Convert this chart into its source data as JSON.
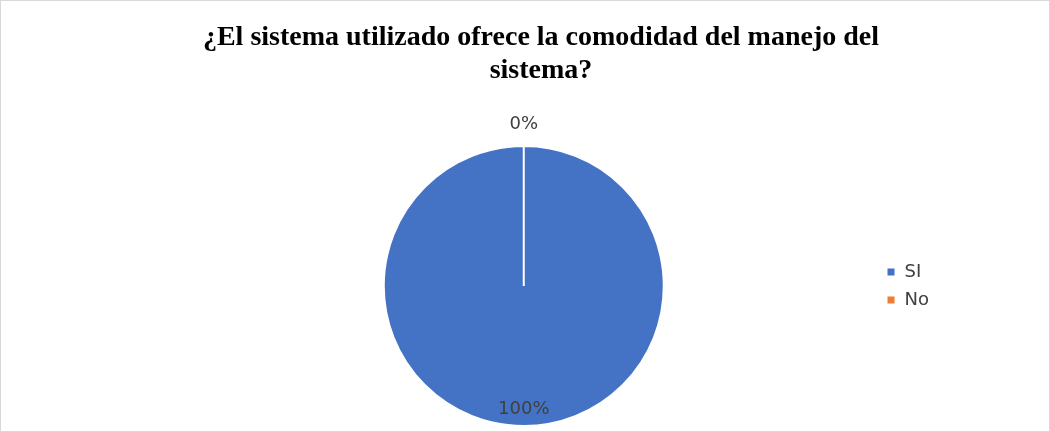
{
  "chart_data": {
    "type": "pie",
    "title": "¿El sistema utilizado ofrece la comodidad del manejo del sistema?",
    "categories": [
      "SI",
      "No"
    ],
    "values": [
      100,
      0
    ],
    "colors": [
      "#4472c4",
      "#ed7d31"
    ],
    "value_labels": [
      "100%",
      "0%"
    ],
    "legend": "right"
  }
}
